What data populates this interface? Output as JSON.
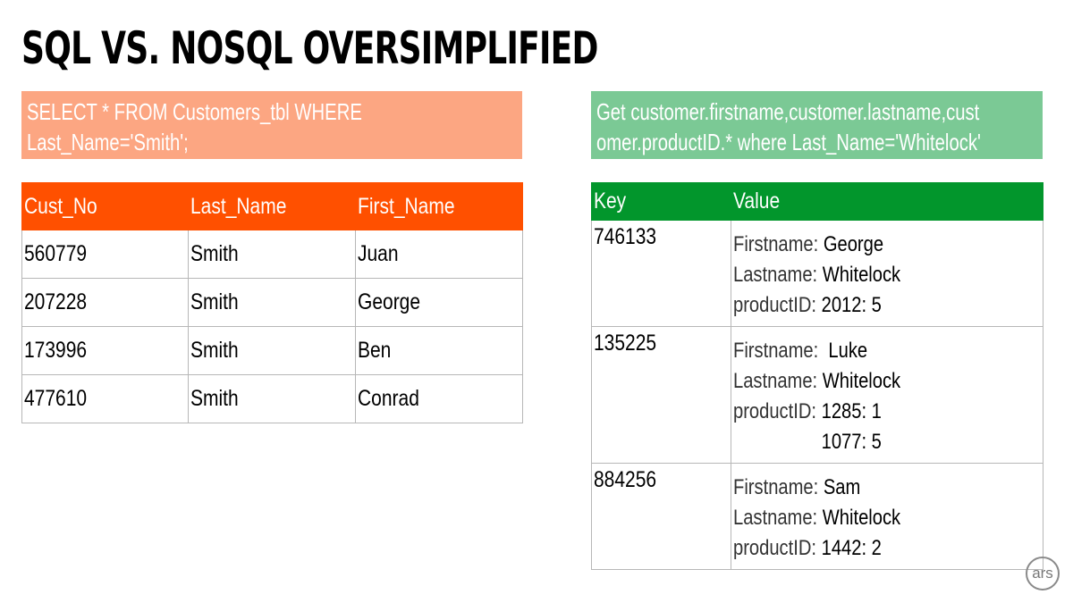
{
  "title": "SQL VS. NOSQL OVERSIMPLIFIED",
  "sql": {
    "query_line1": "SELECT * FROM Customers_tbl WHERE",
    "query_line2": "Last_Name='Smith';",
    "headers": [
      "Cust_No",
      "Last_Name",
      "First_Name"
    ],
    "rows": [
      [
        "560779",
        "Smith",
        "Juan"
      ],
      [
        "207228",
        "Smith",
        "George"
      ],
      [
        "173996",
        "Smith",
        "Ben"
      ],
      [
        "477610",
        "Smith",
        "Conrad"
      ]
    ]
  },
  "nosql": {
    "query_line1": "Get customer.firstname,customer.lastname,cust",
    "query_line2": "omer.productID.* where Last_Name='Whitelock'",
    "headers": [
      "Key",
      "Value"
    ],
    "field_labels": {
      "firstname": "Firstname:",
      "lastname": "Lastname:",
      "productid": "productID:"
    },
    "rows": [
      {
        "key": "746133",
        "firstname": "George",
        "lastname": "Whitelock",
        "products": [
          "2012: 5"
        ]
      },
      {
        "key": "135225",
        "firstname": "Luke",
        "lastname": "Whitelock",
        "products": [
          "1285: 1",
          "1077: 5"
        ]
      },
      {
        "key": "884256",
        "firstname": "Sam",
        "lastname": "Whitelock",
        "products": [
          "1442: 2"
        ]
      }
    ]
  },
  "logo_text": "ars",
  "colors": {
    "sql_query_bg": "#fca682",
    "sql_header_bg": "#ff5000",
    "nosql_query_bg": "#7bc995",
    "nosql_header_bg": "#02962c"
  }
}
